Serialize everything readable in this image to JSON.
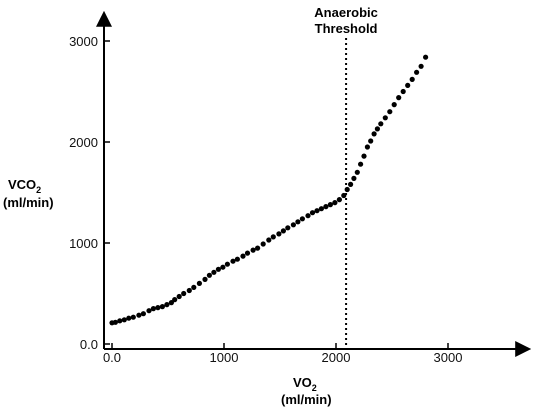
{
  "chart_data": {
    "type": "scatter",
    "title": "",
    "xlabel": {
      "main": "VO",
      "sub": "2",
      "unit": "(ml/min)"
    },
    "ylabel": {
      "main": "VCO",
      "sub": "2",
      "unit": "(ml/min)"
    },
    "xlim": [
      0,
      3600
    ],
    "ylim": [
      0,
      3150
    ],
    "xticks": [
      0,
      1000,
      2000,
      3000
    ],
    "xtick_labels": [
      "0.0",
      "1000",
      "2000",
      "3000"
    ],
    "yticks": [
      0,
      1000,
      2000,
      3000
    ],
    "ytick_labels": [
      "0.0",
      "1000",
      "2000",
      "3000"
    ],
    "grid": false,
    "legend": false,
    "marker_color": "#000000",
    "annotation": {
      "lines": [
        "Anaerobic",
        "Threshold"
      ],
      "x": 2090,
      "style": "dotted vertical line"
    },
    "points": [
      [
        0,
        210
      ],
      [
        30,
        215
      ],
      [
        70,
        230
      ],
      [
        110,
        240
      ],
      [
        150,
        255
      ],
      [
        190,
        265
      ],
      [
        240,
        285
      ],
      [
        280,
        300
      ],
      [
        330,
        330
      ],
      [
        370,
        350
      ],
      [
        410,
        360
      ],
      [
        450,
        370
      ],
      [
        490,
        390
      ],
      [
        530,
        410
      ],
      [
        560,
        440
      ],
      [
        600,
        470
      ],
      [
        640,
        500
      ],
      [
        690,
        530
      ],
      [
        730,
        560
      ],
      [
        780,
        600
      ],
      [
        830,
        640
      ],
      [
        870,
        680
      ],
      [
        910,
        710
      ],
      [
        950,
        740
      ],
      [
        990,
        760
      ],
      [
        1030,
        790
      ],
      [
        1080,
        820
      ],
      [
        1120,
        840
      ],
      [
        1170,
        870
      ],
      [
        1210,
        900
      ],
      [
        1260,
        930
      ],
      [
        1300,
        950
      ],
      [
        1350,
        990
      ],
      [
        1400,
        1030
      ],
      [
        1440,
        1060
      ],
      [
        1490,
        1090
      ],
      [
        1530,
        1120
      ],
      [
        1570,
        1150
      ],
      [
        1620,
        1180
      ],
      [
        1660,
        1210
      ],
      [
        1700,
        1240
      ],
      [
        1750,
        1270
      ],
      [
        1790,
        1300
      ],
      [
        1830,
        1320
      ],
      [
        1870,
        1340
      ],
      [
        1910,
        1360
      ],
      [
        1950,
        1380
      ],
      [
        1990,
        1400
      ],
      [
        2030,
        1430
      ],
      [
        2070,
        1470
      ],
      [
        2100,
        1530
      ],
      [
        2130,
        1580
      ],
      [
        2160,
        1640
      ],
      [
        2190,
        1700
      ],
      [
        2220,
        1780
      ],
      [
        2250,
        1860
      ],
      [
        2280,
        1950
      ],
      [
        2310,
        2010
      ],
      [
        2340,
        2080
      ],
      [
        2370,
        2130
      ],
      [
        2400,
        2180
      ],
      [
        2440,
        2240
      ],
      [
        2480,
        2300
      ],
      [
        2520,
        2370
      ],
      [
        2560,
        2440
      ],
      [
        2600,
        2500
      ],
      [
        2640,
        2560
      ],
      [
        2680,
        2620
      ],
      [
        2720,
        2690
      ],
      [
        2760,
        2750
      ],
      [
        2800,
        2840
      ]
    ]
  }
}
